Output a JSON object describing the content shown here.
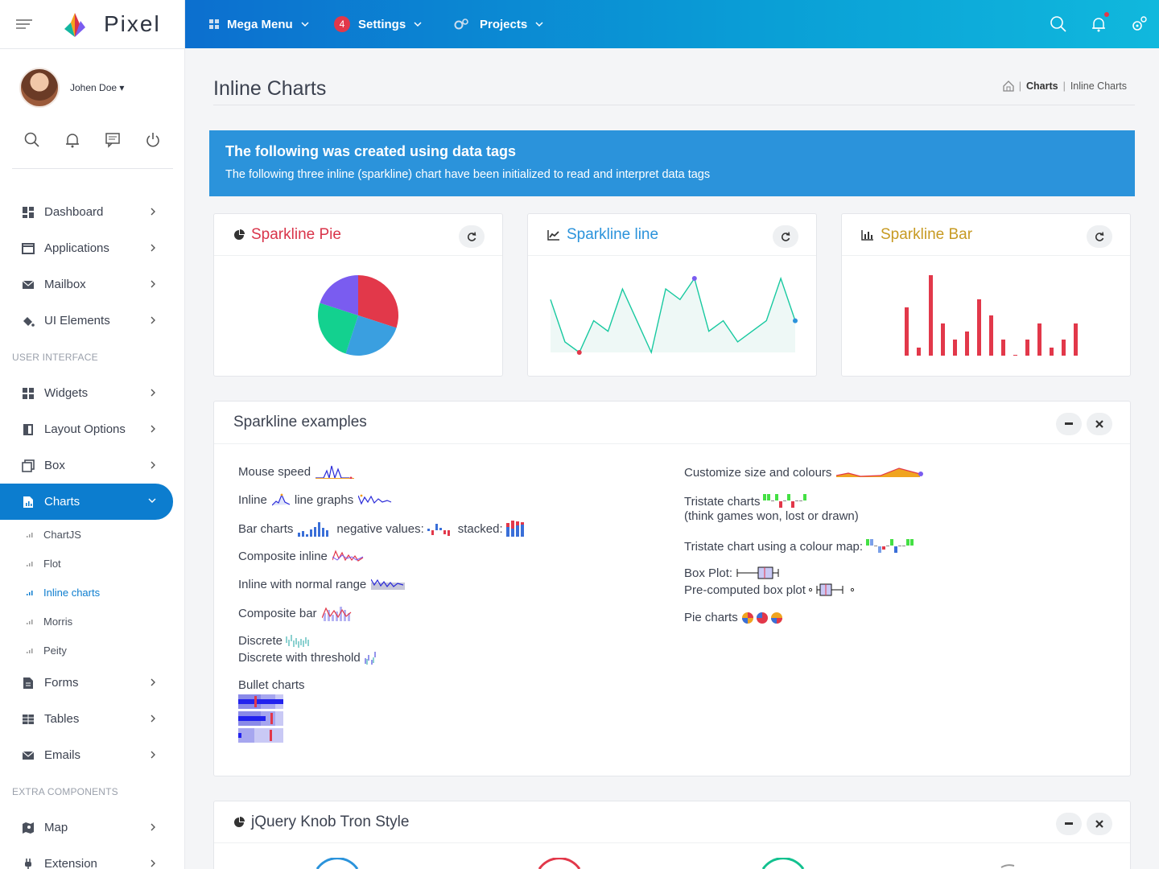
{
  "brand": "Pixel",
  "user": {
    "name": "Johen Doe"
  },
  "topnav": {
    "mega": "Mega Menu",
    "settings": "Settings",
    "settings_badge": "4",
    "projects": "Projects"
  },
  "menu": {
    "dashboard": "Dashboard",
    "applications": "Applications",
    "mailbox": "Mailbox",
    "ui_elements": "UI Elements",
    "section_ui": "USER INTERFACE",
    "widgets": "Widgets",
    "layout": "Layout Options",
    "box": "Box",
    "charts": "Charts",
    "sub": [
      "ChartJS",
      "Flot",
      "Inline charts",
      "Morris",
      "Peity"
    ],
    "forms": "Forms",
    "tables": "Tables",
    "emails": "Emails",
    "section_extra": "EXTRA COMPONENTS",
    "map": "Map",
    "extension": "Extension"
  },
  "page": {
    "title": "Inline Charts",
    "crumb1": "Charts",
    "crumb2": "Inline Charts"
  },
  "banner": {
    "title": "The following was created using data tags",
    "text": "The following three inline (sparkline) chart have been initialized to read and interpret data tags"
  },
  "cards": {
    "pie": "Sparkline Pie",
    "line": "Sparkline line",
    "bar": "Sparkline Bar"
  },
  "colors": {
    "pie_title": "#d9344a",
    "line_title": "#2b93db",
    "bar_title": "#c79a22",
    "accent": "#0c7dcf"
  },
  "examples": {
    "title": "Sparkline examples",
    "mouse_speed": "Mouse speed",
    "inline": "Inline",
    "line_graphs": "line graphs",
    "bar_charts": "Bar charts",
    "negative": "negative values:",
    "stacked": "stacked:",
    "composite_inline": "Composite inline",
    "normal_range": "Inline with normal range",
    "composite_bar": "Composite bar",
    "discrete": "Discrete",
    "discrete_threshold": "Discrete with threshold",
    "bullet": "Bullet charts",
    "customize": "Customize size and colours",
    "tristate": "Tristate charts",
    "tristate_note": "(think games won, lost or drawn)",
    "tristate_map": "Tristate chart using a colour map:",
    "box_plot": "Box Plot:",
    "precomputed": "Pre-computed box plot",
    "pie_charts": "Pie charts"
  },
  "knob": {
    "title": "jQuery Knob Tron Style"
  },
  "chart_data": [
    {
      "type": "pie",
      "values": [
        30,
        25,
        25,
        20
      ],
      "colors": [
        "#e2384a",
        "#3a9fe0",
        "#13d18f",
        "#7a5cf0"
      ]
    },
    {
      "type": "line",
      "values": [
        5,
        1,
        0,
        3,
        2,
        6,
        3,
        0,
        6,
        5,
        7,
        2,
        3,
        1,
        2,
        3,
        7,
        3
      ],
      "color": "#18c9a0"
    },
    {
      "type": "bar",
      "values": [
        6,
        1,
        10,
        4,
        2,
        3,
        7,
        5,
        2,
        0,
        2,
        4,
        1,
        2,
        4
      ],
      "color": "#e2384a"
    }
  ]
}
